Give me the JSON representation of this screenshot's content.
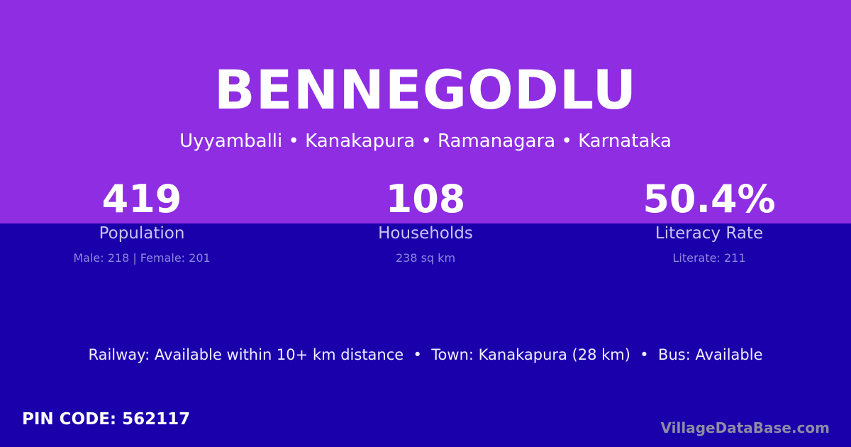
{
  "village": {
    "name": "BENNEGODLU",
    "location": "Uyyamballi • Kanakapura • Ramanagara • Karnataka"
  },
  "stats": [
    {
      "value": "419",
      "label": "Population",
      "detail": "Male: 218 | Female: 201"
    },
    {
      "value": "108",
      "label": "Households",
      "detail": "238 sq km"
    },
    {
      "value": "50.4%",
      "label": "Literacy Rate",
      "detail": "Literate: 211"
    }
  ],
  "facts": "Railway: Available within 10+ km distance  •  Town: Kanakapura (28 km)  •  Bus: Available",
  "pin_code": "PIN CODE: 562117",
  "brand": "VillageDataBase.com",
  "colors": {
    "top_band": "#8e2de2",
    "bottom_band": "#1a00ab"
  }
}
